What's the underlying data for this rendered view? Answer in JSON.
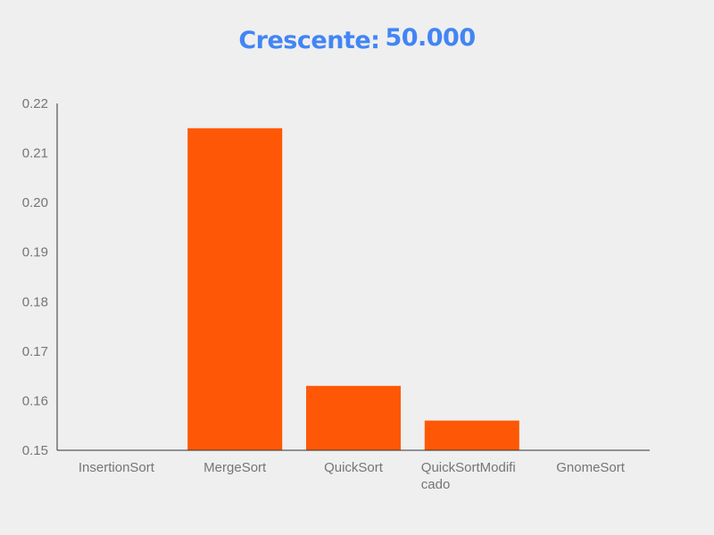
{
  "chart_data": {
    "type": "bar",
    "title_prefix": "Crescente:",
    "title_number": "50.000",
    "categories": [
      "InsertionSort",
      "MergeSort",
      "QuickSort",
      "QuickSortModificado",
      "GnomeSort"
    ],
    "category_label_lines": [
      [
        "InsertionSort"
      ],
      [
        "MergeSort"
      ],
      [
        "QuickSort"
      ],
      [
        "QuickSortModifi",
        "cado"
      ],
      [
        "GnomeSort"
      ]
    ],
    "values": [
      0.15,
      0.215,
      0.163,
      0.156,
      0.15
    ],
    "ylim": [
      0.15,
      0.22
    ],
    "yticks": [
      0.15,
      0.16,
      0.17,
      0.18,
      0.19,
      0.2,
      0.21,
      0.22
    ],
    "ytick_labels": [
      "0.15",
      "0.16",
      "0.17",
      "0.18",
      "0.19",
      "0.20",
      "0.21",
      "0.22"
    ],
    "bar_color": "#fe5806",
    "title_color": "#4285f4",
    "grid": false,
    "legend": "none"
  }
}
